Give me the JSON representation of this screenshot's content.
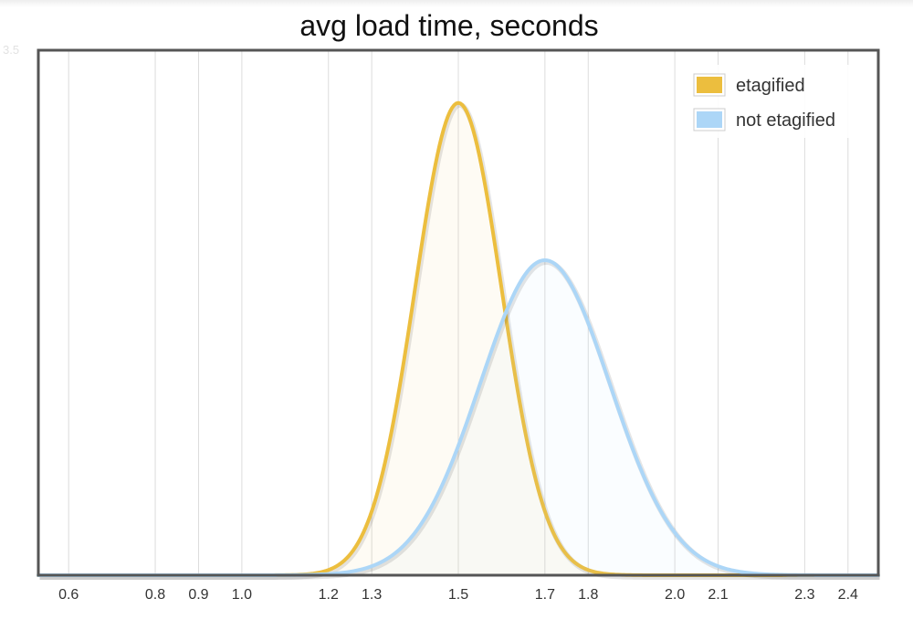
{
  "chart_data": {
    "type": "area",
    "title": "avg load time, seconds",
    "xlabel": "",
    "ylabel": "",
    "x_tick_labels": [
      "0.6",
      "0.8",
      "0.9",
      "1.0",
      "1.2",
      "1.3",
      "1.5",
      "1.7",
      "1.8",
      "2.0",
      "2.1",
      "2.3",
      "2.4"
    ],
    "xlim": [
      0.53,
      2.47
    ],
    "ylim": [
      0,
      1.1
    ],
    "grid": "vertical",
    "legend_position": "top-right",
    "series": [
      {
        "name": "etagified",
        "color": "#ecbe3e",
        "fill": "rgba(236,190,62,0.06)",
        "shape": "normal",
        "mean": 1.5,
        "sd": 0.1,
        "peak": 1.0
      },
      {
        "name": "not etagified",
        "color": "#acd6f7",
        "fill": "rgba(172,214,247,0.06)",
        "shape": "normal",
        "mean": 1.7,
        "sd": 0.15,
        "peak": 0.667
      }
    ]
  },
  "stub_text": "3.5"
}
